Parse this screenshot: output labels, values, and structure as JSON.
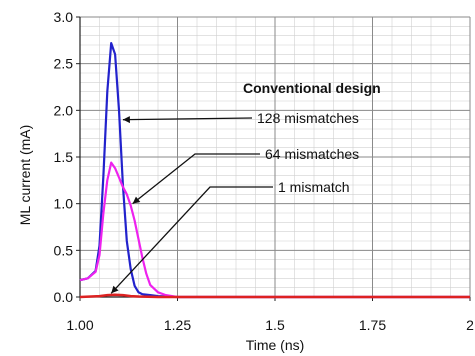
{
  "chart_data": {
    "type": "line",
    "title": "",
    "xlabel": "Time (ns)",
    "ylabel": "ML current (mA)",
    "xlim": [
      1.0,
      2.0
    ],
    "ylim": [
      0.0,
      3.0
    ],
    "x_ticks": [
      1.0,
      1.25,
      1.5,
      1.75,
      2.0
    ],
    "x_tick_labels": [
      "1.00",
      "1.25",
      "1.5",
      "1.75",
      "2"
    ],
    "y_ticks": [
      0.0,
      0.5,
      1.0,
      1.5,
      2.0,
      2.5,
      3.0
    ],
    "y_tick_labels": [
      "0.0",
      "0.5",
      "1.0",
      "1.5",
      "2.0",
      "2.5",
      "3.0"
    ],
    "grid": true,
    "annotation_title": "Conventional design",
    "series": [
      {
        "name": "128 mismatches",
        "color": "#2222cc",
        "x": [
          1.0,
          1.02,
          1.04,
          1.05,
          1.06,
          1.07,
          1.08,
          1.09,
          1.1,
          1.11,
          1.12,
          1.13,
          1.14,
          1.15,
          1.16,
          1.18,
          1.2,
          1.25,
          1.5,
          2.0
        ],
        "y": [
          0.18,
          0.2,
          0.28,
          0.55,
          1.3,
          2.2,
          2.72,
          2.6,
          2.0,
          1.2,
          0.6,
          0.3,
          0.12,
          0.05,
          0.03,
          0.02,
          0.01,
          0.0,
          0.0,
          0.0
        ]
      },
      {
        "name": "64 mismatches",
        "color": "#ee22ee",
        "x": [
          1.0,
          1.02,
          1.04,
          1.05,
          1.06,
          1.07,
          1.08,
          1.09,
          1.1,
          1.11,
          1.12,
          1.13,
          1.14,
          1.15,
          1.16,
          1.17,
          1.18,
          1.2,
          1.22,
          1.25,
          1.5,
          2.0
        ],
        "y": [
          0.18,
          0.2,
          0.27,
          0.45,
          0.9,
          1.25,
          1.44,
          1.38,
          1.28,
          1.18,
          1.1,
          0.98,
          0.82,
          0.62,
          0.42,
          0.25,
          0.13,
          0.05,
          0.02,
          0.0,
          0.0,
          0.0
        ]
      },
      {
        "name": "1 mismatch",
        "color": "#dd2222",
        "x": [
          1.0,
          1.05,
          1.07,
          1.09,
          1.11,
          1.13,
          1.15,
          1.2,
          1.5,
          2.0
        ],
        "y": [
          0.0,
          0.01,
          0.02,
          0.025,
          0.02,
          0.01,
          0.005,
          0.0,
          0.0,
          0.0
        ]
      }
    ],
    "annotations": [
      {
        "text": "128 mismatches",
        "series": 0,
        "point": [
          1.11,
          1.9
        ]
      },
      {
        "text": "64 mismatches",
        "series": 1,
        "point": [
          1.135,
          1.0
        ]
      },
      {
        "text": "1 mismatch",
        "series": 2,
        "point": [
          1.08,
          0.04
        ]
      }
    ]
  }
}
